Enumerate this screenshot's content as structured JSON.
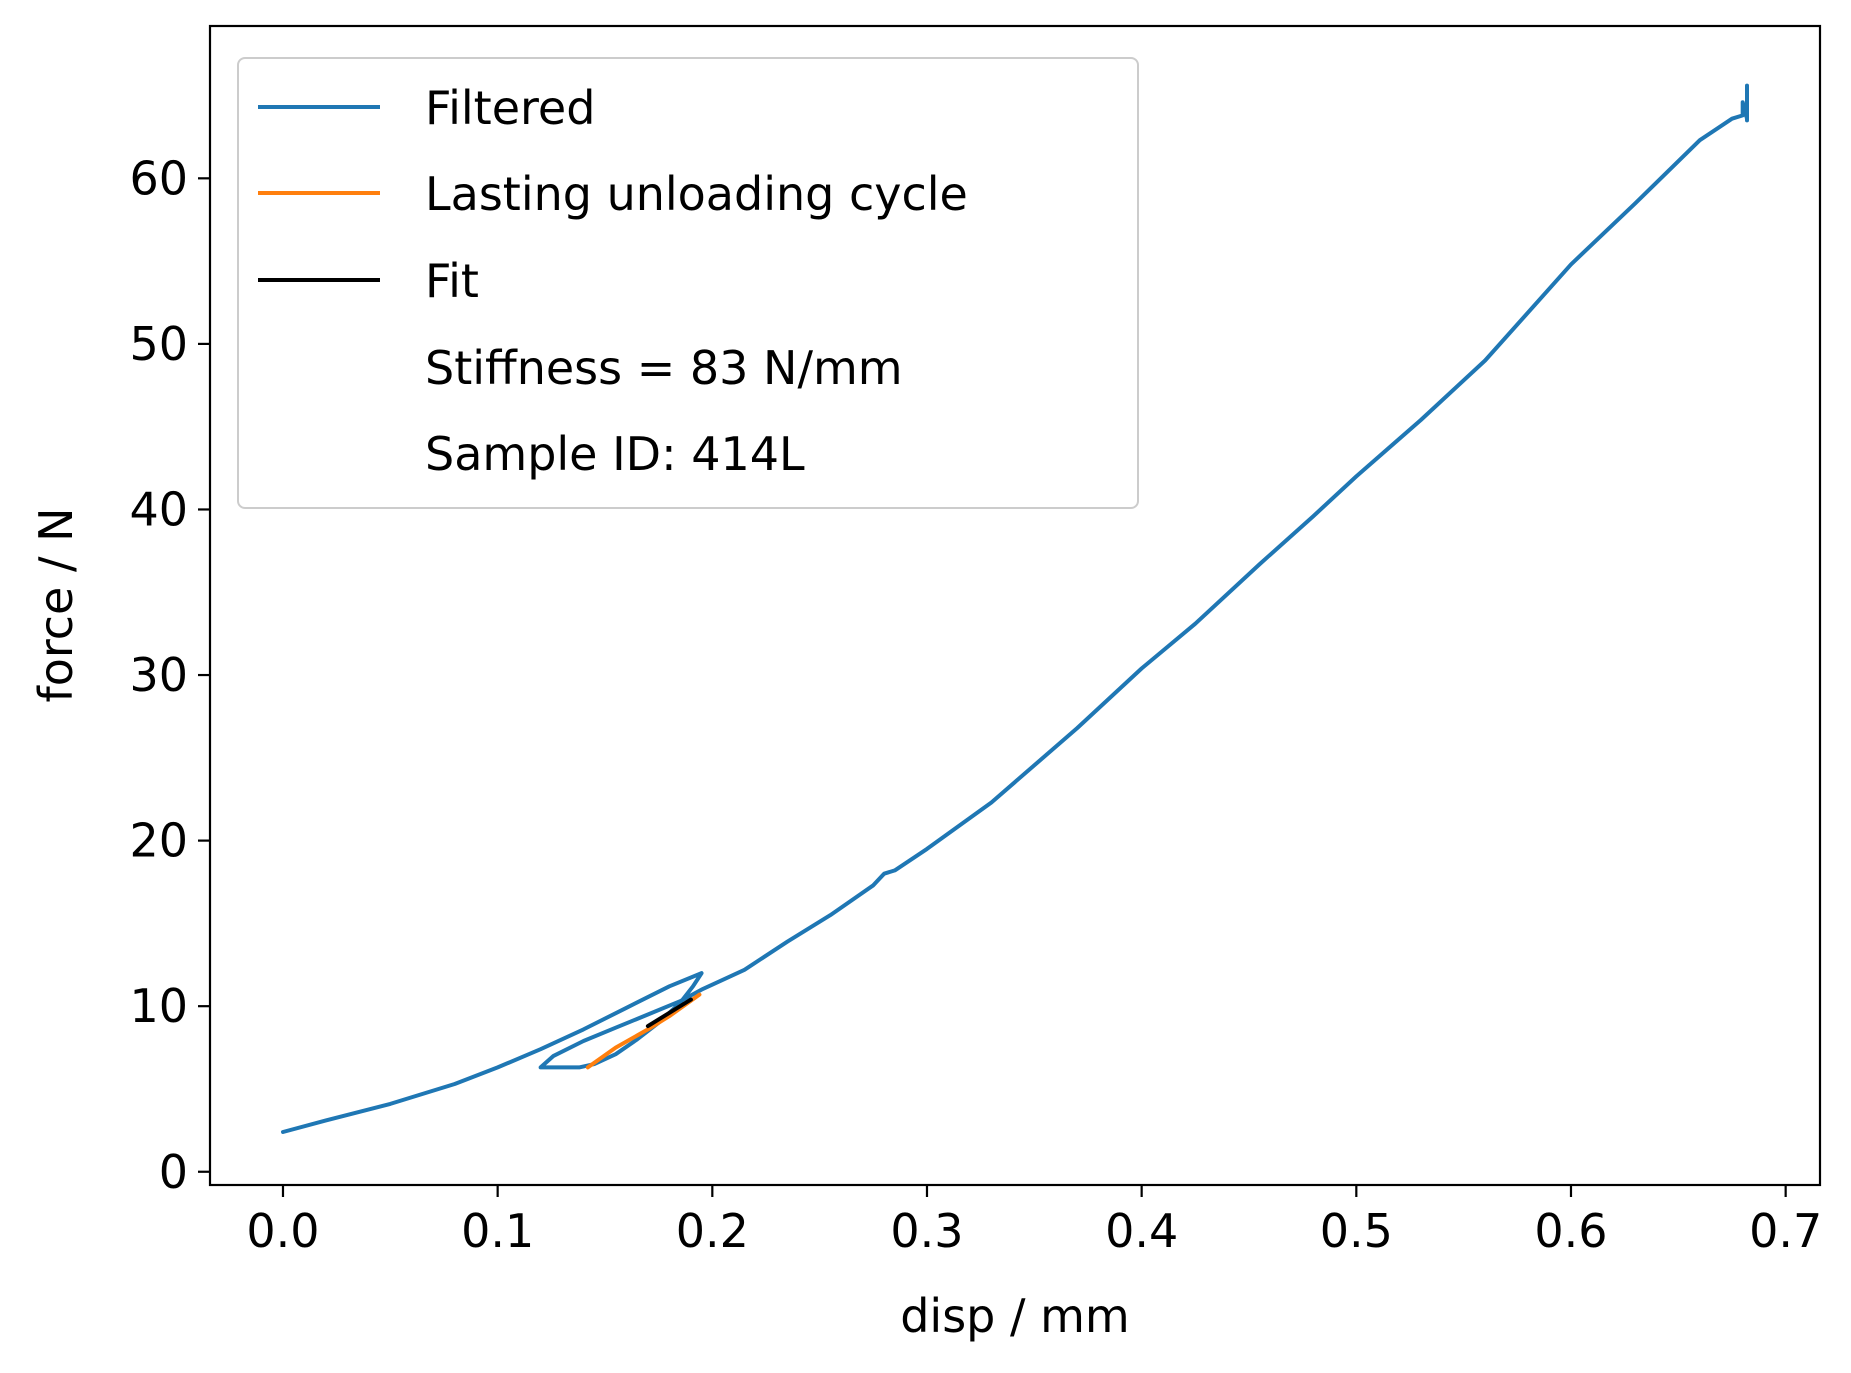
{
  "chart_data": {
    "type": "line",
    "title": "",
    "xlabel": "disp / mm",
    "ylabel": "force / N",
    "xlim": [
      -0.034,
      0.716
    ],
    "ylim": [
      -0.8,
      69.2
    ],
    "xticks": [
      0.0,
      0.1,
      0.2,
      0.3,
      0.4,
      0.5,
      0.6,
      0.7
    ],
    "xtick_labels": [
      "0.0",
      "0.1",
      "0.2",
      "0.3",
      "0.4",
      "0.5",
      "0.6",
      "0.7"
    ],
    "yticks": [
      0,
      10,
      20,
      30,
      40,
      50,
      60
    ],
    "ytick_labels": [
      "0",
      "10",
      "20",
      "30",
      "40",
      "50",
      "60"
    ],
    "grid": false,
    "legend_position": "top-left",
    "series": [
      {
        "name": "Filtered",
        "color": "#1f77b4",
        "x": [
          0.0,
          0.02,
          0.05,
          0.08,
          0.1,
          0.12,
          0.14,
          0.16,
          0.18,
          0.195,
          0.191,
          0.185,
          0.175,
          0.165,
          0.155,
          0.145,
          0.138,
          0.128,
          0.12,
          0.126,
          0.14,
          0.155,
          0.17,
          0.185,
          0.195,
          0.205,
          0.215,
          0.235,
          0.255,
          0.275,
          0.28,
          0.285,
          0.3,
          0.33,
          0.37,
          0.4,
          0.425,
          0.455,
          0.48,
          0.5,
          0.53,
          0.56,
          0.6,
          0.63,
          0.66,
          0.675,
          0.68,
          0.68,
          0.682,
          0.682,
          0.682
        ],
        "y": [
          2.4,
          3.1,
          4.1,
          5.3,
          6.3,
          7.4,
          8.6,
          9.9,
          11.2,
          12.0,
          11.2,
          10.2,
          9.0,
          8.0,
          7.1,
          6.5,
          6.3,
          6.3,
          6.3,
          7.0,
          7.9,
          8.7,
          9.5,
          10.3,
          11.0,
          11.6,
          12.2,
          13.9,
          15.5,
          17.3,
          18.0,
          18.2,
          19.5,
          22.3,
          26.8,
          30.4,
          33.1,
          36.7,
          39.6,
          42.0,
          45.4,
          49.0,
          54.8,
          58.5,
          62.3,
          63.6,
          63.8,
          64.6,
          63.6,
          65.6,
          63.5
        ]
      },
      {
        "name": "Lasting unloading cycle",
        "color": "#ff7f0e",
        "x": [
          0.142,
          0.155,
          0.17,
          0.18,
          0.194
        ],
        "y": [
          6.3,
          7.5,
          8.6,
          9.4,
          10.7
        ]
      },
      {
        "name": "Fit",
        "color": "#000000",
        "x": [
          0.17,
          0.18,
          0.19
        ],
        "y": [
          8.8,
          9.6,
          10.4
        ]
      }
    ],
    "legend_text": [
      "Stiffness = 83 N/mm",
      "Sample ID: 414L"
    ]
  }
}
